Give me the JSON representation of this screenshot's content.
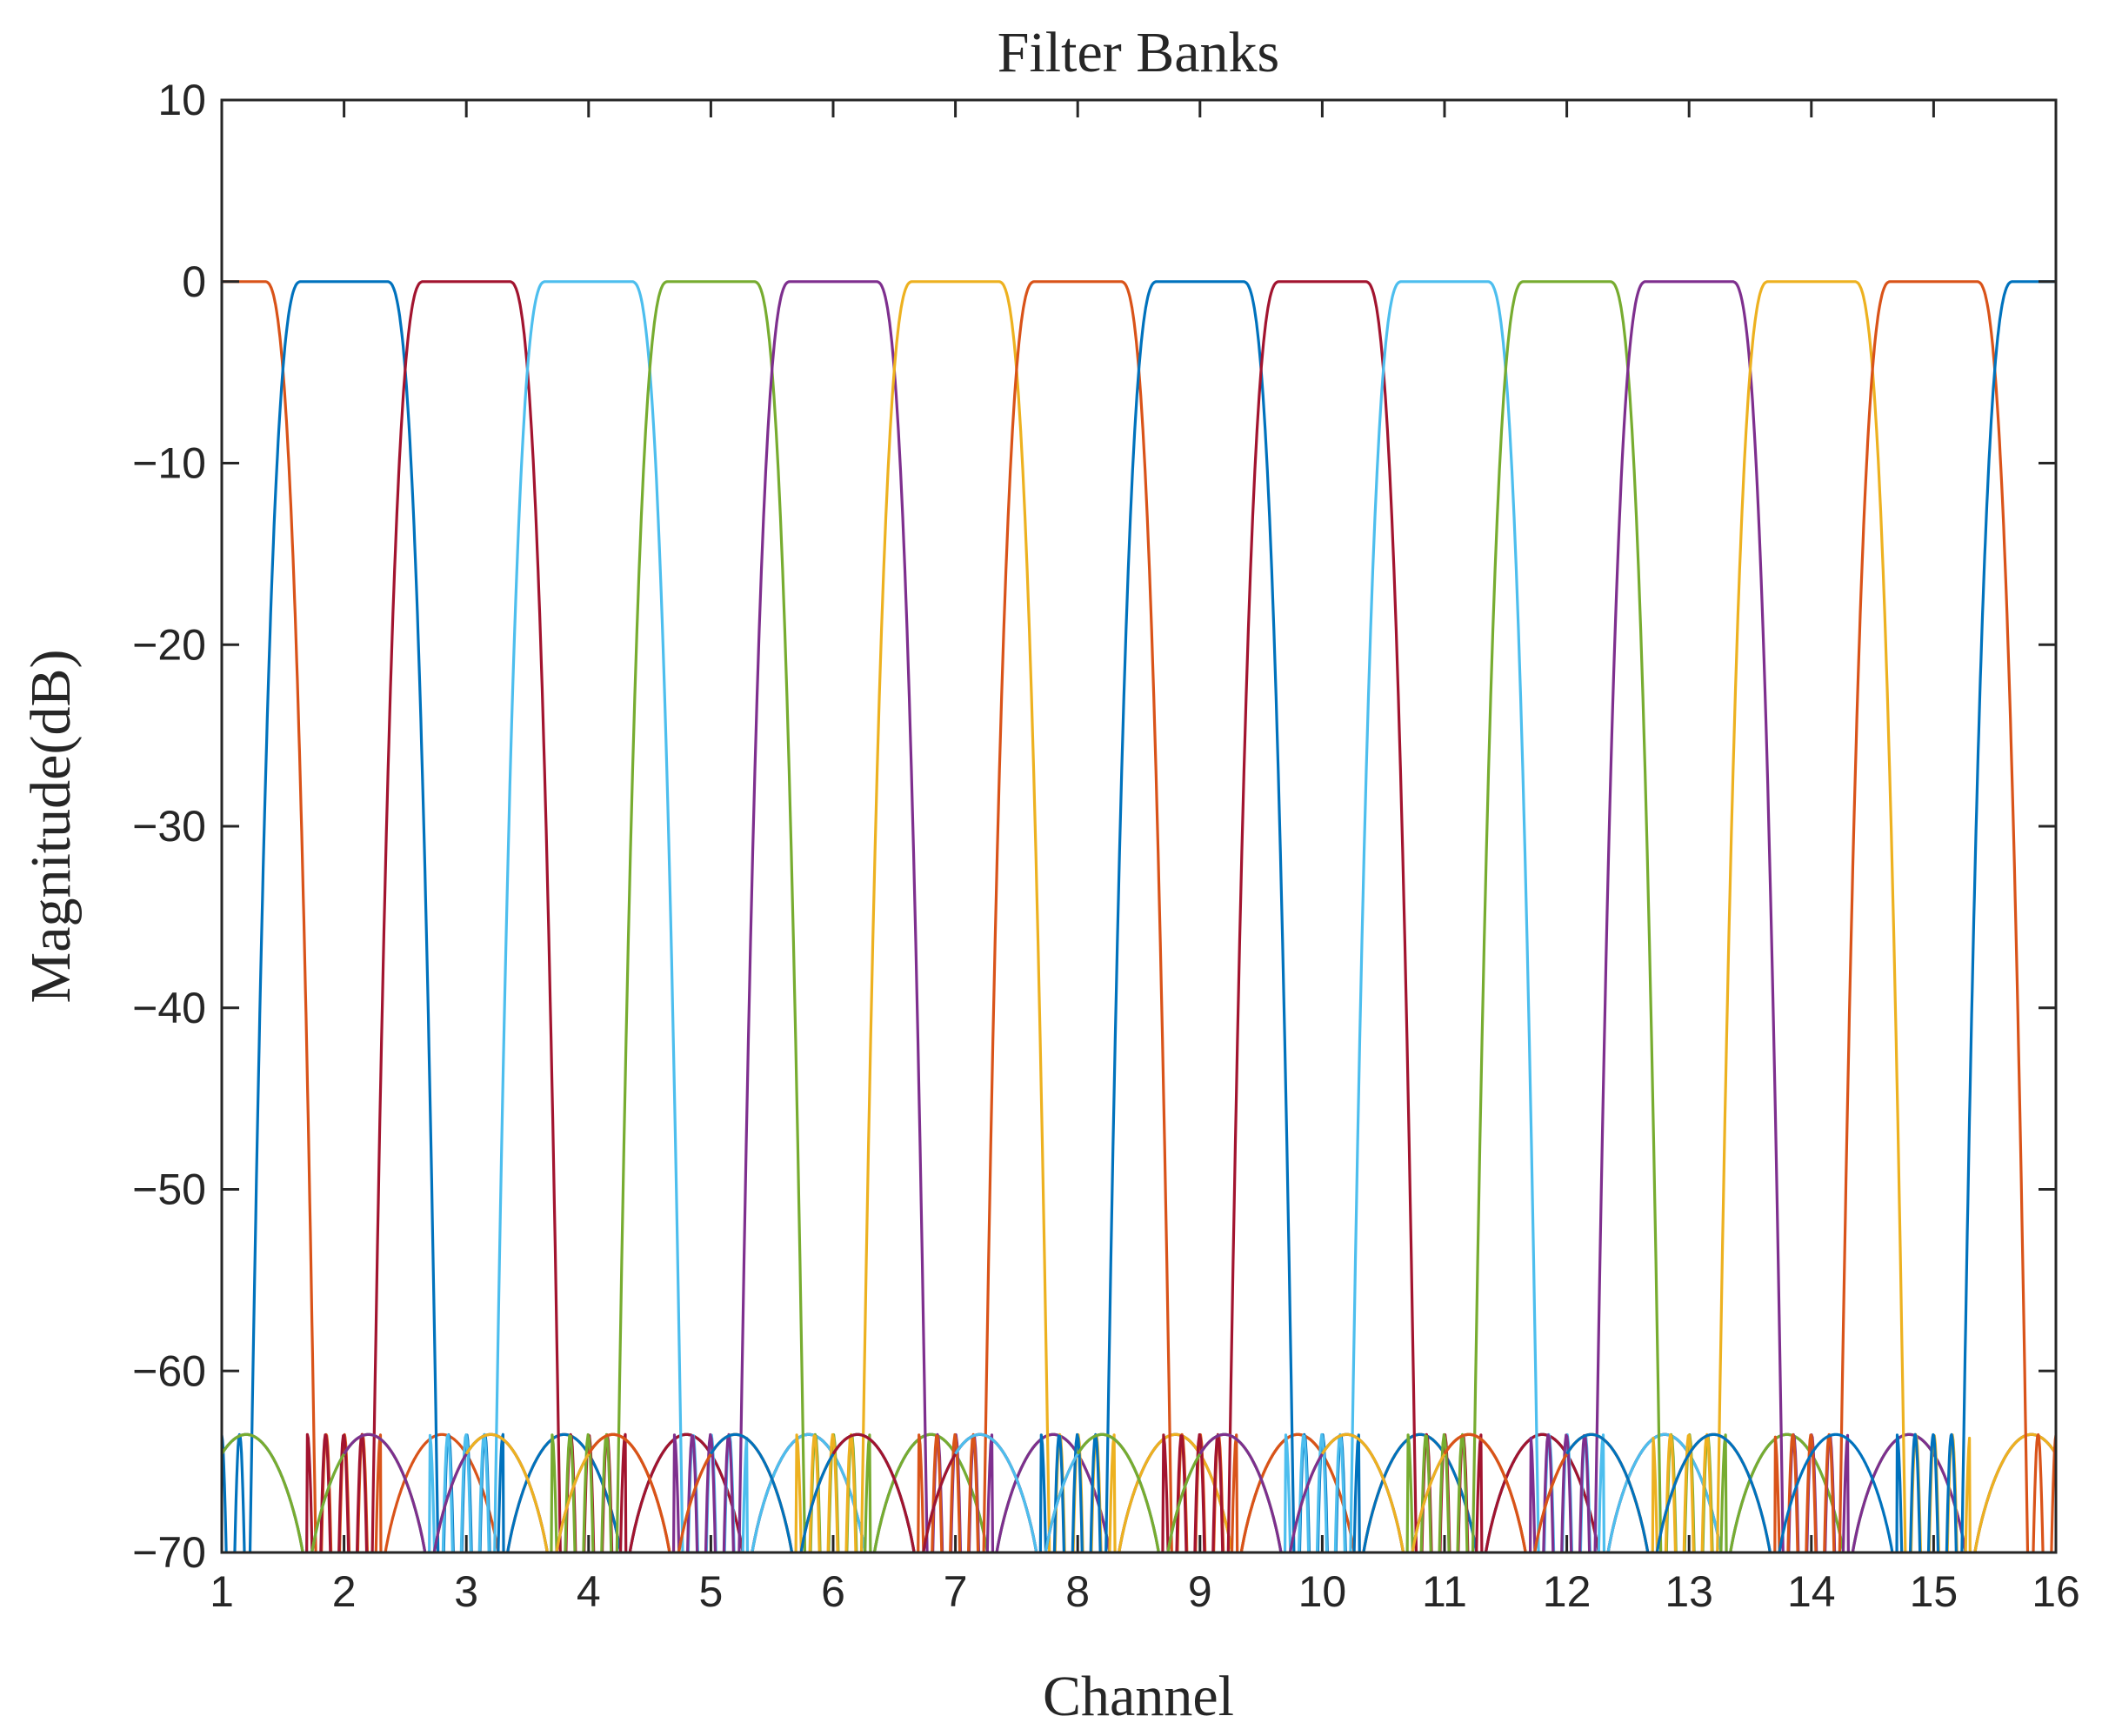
{
  "chart_data": {
    "type": "line",
    "title": "Filter Banks",
    "xlabel": "Channel",
    "ylabel": "Magnitude(dB)",
    "xlim": [
      1,
      16
    ],
    "ylim": [
      -70,
      10
    ],
    "xticks": [
      "1",
      "2",
      "3",
      "4",
      "5",
      "6",
      "7",
      "8",
      "9",
      "10",
      "11",
      "12",
      "13",
      "14",
      "15",
      "16"
    ],
    "yticks": [
      "10",
      "0",
      "−10",
      "−20",
      "−30",
      "−40",
      "−50",
      "−60",
      "−70"
    ],
    "grid": false,
    "legend": "none",
    "passband_db": 0,
    "stopband_db": -63.5,
    "floor_db": -70,
    "series": [
      {
        "center": 1,
        "color": "#D95319"
      },
      {
        "center": 2,
        "color": "#0072BD"
      },
      {
        "center": 3,
        "color": "#A2142F"
      },
      {
        "center": 4,
        "color": "#4DBEEE"
      },
      {
        "center": 5,
        "color": "#77AC30"
      },
      {
        "center": 6,
        "color": "#7E2F8E"
      },
      {
        "center": 7,
        "color": "#EDB120"
      },
      {
        "center": 8,
        "color": "#D95319"
      },
      {
        "center": 9,
        "color": "#0072BD"
      },
      {
        "center": 10,
        "color": "#A2142F"
      },
      {
        "center": 11,
        "color": "#4DBEEE"
      },
      {
        "center": 12,
        "color": "#77AC30"
      },
      {
        "center": 13,
        "color": "#7E2F8E"
      },
      {
        "center": 14,
        "color": "#EDB120"
      },
      {
        "center": 15,
        "color": "#D95319"
      },
      {
        "center": 16,
        "color": "#0072BD"
      }
    ]
  }
}
